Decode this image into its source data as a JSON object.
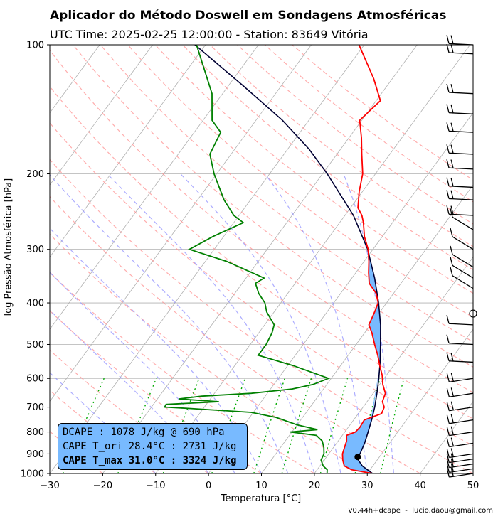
{
  "header": {
    "title": "Aplicador do Método Doswell em Sondagens Atmosféricas",
    "subtitle": "UTC Time: 2025-02-25 12:00:00 - Station: 83649 Vitória"
  },
  "footer": {
    "text": "v0.44h+dcape  -  lucio.daou@gmail.com"
  },
  "info_box": {
    "line1": "DCAPE : 1078 J/kg @ 690 hPa",
    "line2": "CAPE T_ori 28.4°C : 2731 J/kg",
    "line3": "CAPE T_max 31.0°C : 3324 J/kg"
  },
  "chart_data": {
    "type": "skew-t",
    "xlabel": "Temperatura [°C]",
    "ylabel": "log Pressão Atmosférica [hPa]",
    "xlim": [
      -30,
      50
    ],
    "ylim": [
      1000,
      100
    ],
    "y_scale": "log",
    "x_ticks": [
      -30,
      -20,
      -10,
      0,
      10,
      20,
      30,
      40,
      50
    ],
    "y_ticks": [
      1000,
      900,
      800,
      700,
      600,
      500,
      400,
      300,
      200,
      100
    ],
    "grid": true,
    "colors": {
      "temperature": "#ff0000",
      "dewpoint": "#008000",
      "parcel": "#000033",
      "cape_fill": "#78baff",
      "dry_adiabats": "#ff9999",
      "moist_adiabats": "#9999ff",
      "mixing_ratio": "#00aa00"
    },
    "series": [
      {
        "role": "temperature",
        "points": [
          [
            1000,
            31.0
          ],
          [
            980,
            26.5
          ],
          [
            960,
            24.6
          ],
          [
            930,
            23.5
          ],
          [
            900,
            22.6
          ],
          [
            870,
            22.1
          ],
          [
            840,
            21.6
          ],
          [
            815,
            20.8
          ],
          [
            800,
            22.0
          ],
          [
            780,
            22.2
          ],
          [
            750,
            22.0
          ],
          [
            725,
            24.4
          ],
          [
            700,
            24.0
          ],
          [
            680,
            22.9
          ],
          [
            650,
            22.3
          ],
          [
            620,
            20.6
          ],
          [
            590,
            19.2
          ],
          [
            560,
            17.4
          ],
          [
            530,
            15.6
          ],
          [
            500,
            13.5
          ],
          [
            470,
            11.4
          ],
          [
            450,
            9.7
          ],
          [
            420,
            9.0
          ],
          [
            400,
            8.4
          ],
          [
            380,
            6.7
          ],
          [
            360,
            4.0
          ],
          [
            340,
            2.4
          ],
          [
            320,
            0.9
          ],
          [
            300,
            -0.9
          ],
          [
            280,
            -3.4
          ],
          [
            260,
            -5.5
          ],
          [
            250,
            -6.8
          ],
          [
            240,
            -8.6
          ],
          [
            220,
            -10.6
          ],
          [
            200,
            -12.4
          ],
          [
            180,
            -15.3
          ],
          [
            165,
            -17.6
          ],
          [
            150,
            -20.4
          ],
          [
            135,
            -19.2
          ],
          [
            120,
            -23.5
          ],
          [
            100,
            -31.0
          ]
        ]
      },
      {
        "role": "dewpoint",
        "points": [
          [
            1000,
            22.4
          ],
          [
            980,
            21.9
          ],
          [
            960,
            20.6
          ],
          [
            930,
            19.4
          ],
          [
            900,
            19.1
          ],
          [
            870,
            18.2
          ],
          [
            840,
            17.0
          ],
          [
            815,
            15.1
          ],
          [
            800,
            9.7
          ],
          [
            790,
            14.5
          ],
          [
            770,
            10.0
          ],
          [
            740,
            5.0
          ],
          [
            720,
            -0.4
          ],
          [
            705,
            -12.6
          ],
          [
            700,
            -17.5
          ],
          [
            690,
            -17.6
          ],
          [
            680,
            -8.0
          ],
          [
            670,
            -16.0
          ],
          [
            660,
            -12.0
          ],
          [
            650,
            -3.0
          ],
          [
            635,
            4.1
          ],
          [
            620,
            7.4
          ],
          [
            600,
            9.5
          ],
          [
            560,
            1.0
          ],
          [
            530,
            -7.0
          ],
          [
            500,
            -7.0
          ],
          [
            470,
            -7.5
          ],
          [
            450,
            -8.2
          ],
          [
            420,
            -11.4
          ],
          [
            400,
            -13.0
          ],
          [
            380,
            -15.5
          ],
          [
            360,
            -17.5
          ],
          [
            350,
            -16.6
          ],
          [
            320,
            -26.0
          ],
          [
            300,
            -34.7
          ],
          [
            280,
            -32.0
          ],
          [
            260,
            -28.2
          ],
          [
            250,
            -31.0
          ],
          [
            230,
            -35.0
          ],
          [
            200,
            -40.5
          ],
          [
            180,
            -44.0
          ],
          [
            160,
            -45.0
          ],
          [
            150,
            -48.3
          ],
          [
            130,
            -52.0
          ],
          [
            100,
            -61.7
          ]
        ]
      },
      {
        "role": "parcel",
        "points": [
          [
            1000,
            31.0
          ],
          [
            960,
            28.0
          ],
          [
            920,
            25.9
          ],
          [
            900,
            25.9
          ],
          [
            850,
            25.3
          ],
          [
            800,
            24.4
          ],
          [
            750,
            23.4
          ],
          [
            700,
            22.2
          ],
          [
            650,
            20.7
          ],
          [
            600,
            19.0
          ],
          [
            550,
            17.0
          ],
          [
            500,
            14.6
          ],
          [
            450,
            11.9
          ],
          [
            400,
            8.5
          ],
          [
            350,
            4.3
          ],
          [
            300,
            -1.0
          ],
          [
            250,
            -8.4
          ],
          [
            200,
            -19.1
          ],
          [
            175,
            -26.0
          ],
          [
            150,
            -35.0
          ],
          [
            125,
            -47.0
          ],
          [
            100,
            -62.0
          ]
        ]
      }
    ],
    "lcl_point": [
      915,
      25.9
    ],
    "annotations": [
      "DCAPE : 1078 J/kg @ 690 hPa",
      "CAPE T_ori 28.4°C : 2731 J/kg",
      "CAPE T_max 31.0°C : 3324 J/kg"
    ],
    "wind_barbs_hpa": [
      1000,
      975,
      950,
      925,
      900,
      850,
      800,
      750,
      700,
      650,
      600,
      550,
      500,
      450,
      400,
      370,
      350,
      330,
      300,
      270,
      250,
      230,
      215,
      195,
      180,
      160,
      145,
      130,
      105,
      100
    ]
  }
}
